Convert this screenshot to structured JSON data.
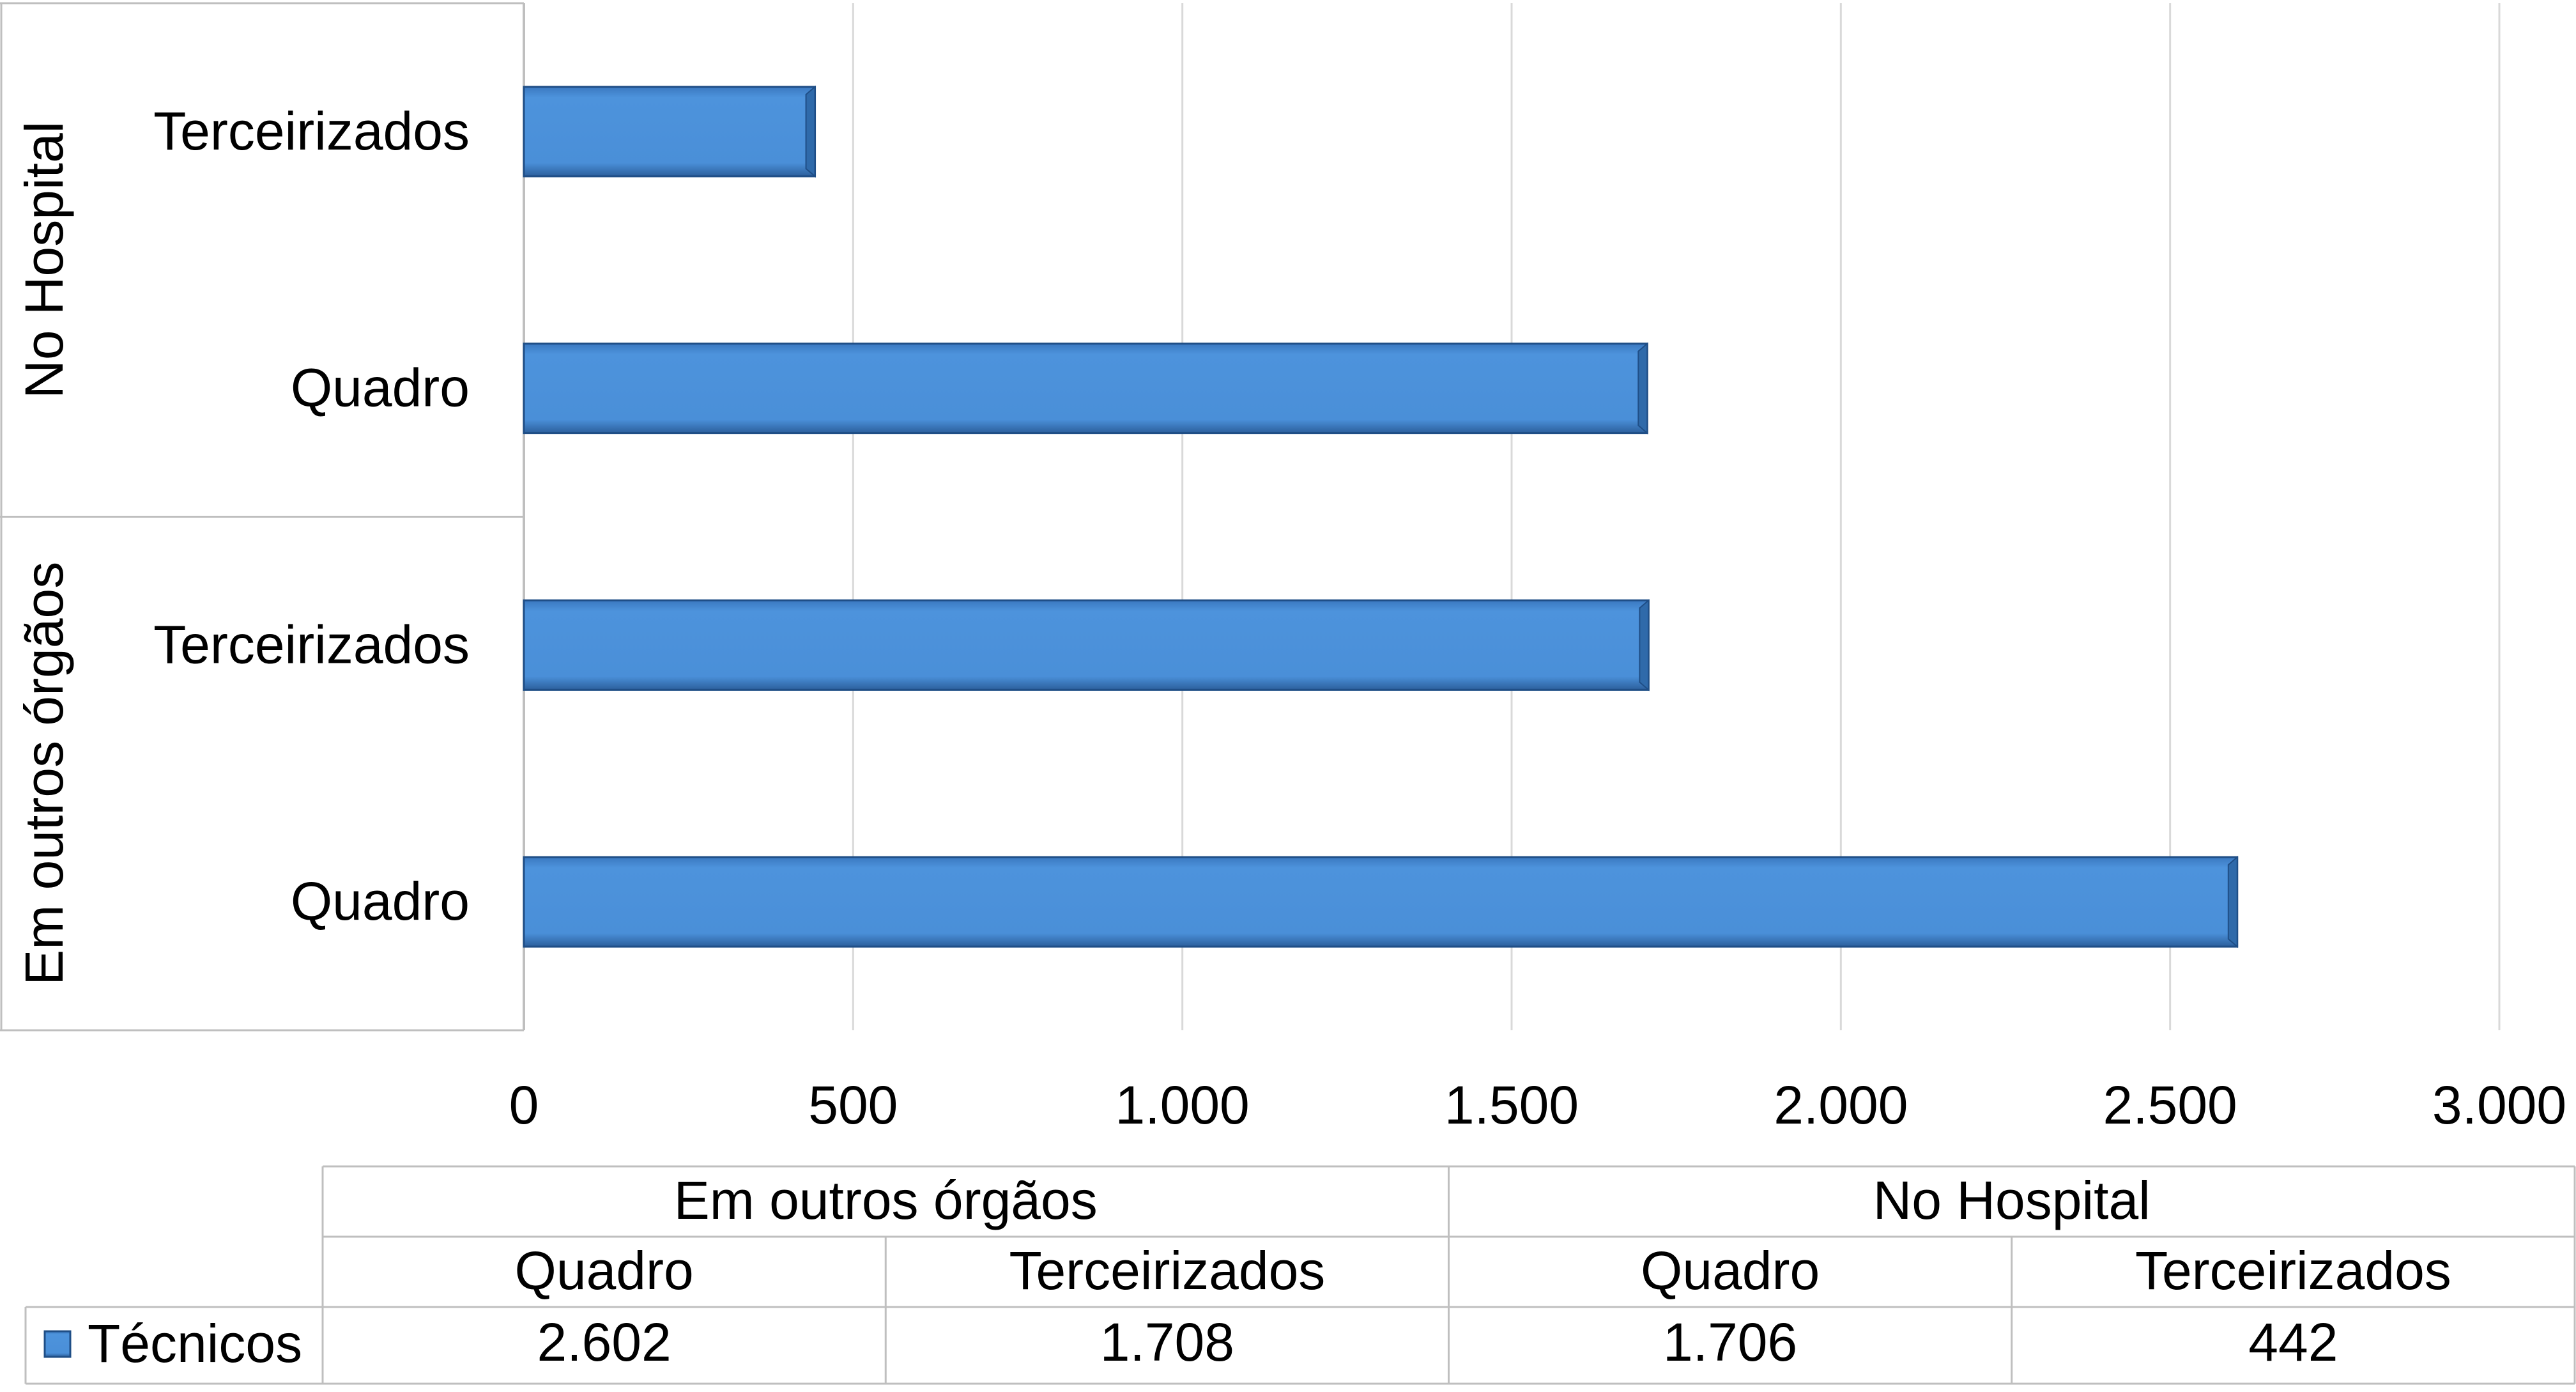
{
  "chart_data": {
    "type": "bar",
    "orientation": "horizontal",
    "groups": [
      {
        "label": "Em outros órgãos",
        "categories": [
          "Quadro",
          "Terceirizados"
        ]
      },
      {
        "label": "No Hospital",
        "categories": [
          "Quadro",
          "Terceirizados"
        ]
      }
    ],
    "series": [
      {
        "name": "Técnicos",
        "values": [
          2602,
          1708,
          1706,
          442
        ],
        "value_labels": [
          "2.602",
          "1.708",
          "1.706",
          "442"
        ],
        "color": "#4a90d9"
      }
    ],
    "xlim": [
      0,
      3000
    ],
    "x_ticks": [
      0,
      500,
      1000,
      1500,
      2000,
      2500,
      3000
    ],
    "x_tick_labels": [
      "0",
      "500",
      "1.000",
      "1.500",
      "2.000",
      "2.500",
      "3.000"
    ],
    "grid": "vertical",
    "data_table": true,
    "legend": "data-table-left"
  }
}
